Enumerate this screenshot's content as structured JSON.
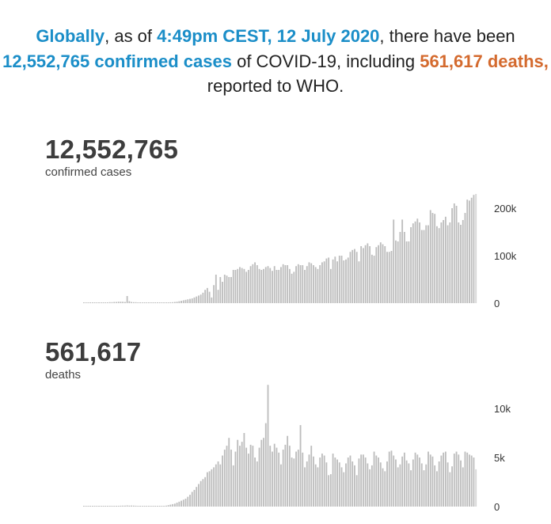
{
  "headline": {
    "p1": "Globally",
    "p2": ", as of ",
    "p3": "4:49pm CEST, 12 July 2020",
    "p4": ", there have been ",
    "p5": "12,552,765 confirmed cases",
    "p6": " of COVID-19, including ",
    "p7": "561,617 deaths,",
    "p8": " reported to WHO."
  },
  "colors": {
    "accent_blue": "#1b8ec8",
    "accent_orange": "#d46a2e",
    "bar": "#bdbdbd",
    "text": "#3d3d3d"
  },
  "cases": {
    "total": "12,552,765",
    "label": "confirmed cases"
  },
  "deaths": {
    "total": "561,617",
    "label": "deaths"
  },
  "chart_data": [
    {
      "type": "bar",
      "title": "",
      "ylim": [
        0,
        230000
      ],
      "yticks": [
        0,
        100000,
        200000
      ],
      "ytick_labels": [
        "0",
        "100k",
        "200k"
      ],
      "grid": false,
      "values": [
        0,
        0,
        0,
        0,
        100,
        200,
        300,
        400,
        600,
        800,
        1000,
        1500,
        2000,
        2000,
        2500,
        2500,
        3000,
        3000,
        3000,
        2500,
        15000,
        4000,
        2500,
        2000,
        2000,
        1500,
        1000,
        1000,
        800,
        600,
        500,
        500,
        600,
        700,
        800,
        900,
        1000,
        1200,
        1300,
        1500,
        1800,
        2000,
        2500,
        3000,
        4000,
        5000,
        6000,
        7000,
        8000,
        9000,
        10000,
        12000,
        14000,
        16000,
        18000,
        22000,
        28000,
        32000,
        24000,
        12000,
        38000,
        60000,
        28000,
        55000,
        45000,
        60000,
        58000,
        55000,
        55000,
        70000,
        70000,
        72000,
        76000,
        74000,
        72000,
        66000,
        70000,
        78000,
        82000,
        86000,
        80000,
        72000,
        70000,
        72000,
        76000,
        78000,
        74000,
        68000,
        78000,
        70000,
        70000,
        76000,
        82000,
        80000,
        80000,
        72000,
        62000,
        66000,
        78000,
        82000,
        80000,
        80000,
        70000,
        78000,
        86000,
        84000,
        80000,
        76000,
        72000,
        80000,
        86000,
        88000,
        94000,
        96000,
        72000,
        92000,
        98000,
        88000,
        100000,
        100000,
        90000,
        92000,
        96000,
        108000,
        112000,
        114000,
        108000,
        88000,
        120000,
        116000,
        122000,
        126000,
        120000,
        102000,
        100000,
        118000,
        122000,
        128000,
        124000,
        120000,
        108000,
        108000,
        110000,
        176000,
        132000,
        130000,
        150000,
        176000,
        150000,
        130000,
        130000,
        160000,
        168000,
        172000,
        178000,
        170000,
        154000,
        154000,
        164000,
        164000,
        196000,
        190000,
        188000,
        162000,
        158000,
        170000,
        175000,
        182000,
        164000,
        170000,
        200000,
        210000,
        205000,
        170000,
        165000,
        175000,
        190000,
        218000,
        216000,
        222000,
        228000,
        230000
      ]
    },
    {
      "type": "bar",
      "title": "",
      "ylim": [
        0,
        12500
      ],
      "yticks": [
        0,
        5000,
        10000
      ],
      "ytick_labels": [
        "0",
        "5k",
        "10k"
      ],
      "grid": false,
      "values": [
        0,
        0,
        0,
        0,
        0,
        0,
        0,
        5,
        10,
        20,
        30,
        40,
        50,
        60,
        60,
        70,
        80,
        90,
        100,
        100,
        120,
        100,
        110,
        100,
        90,
        80,
        70,
        60,
        50,
        50,
        40,
        40,
        50,
        50,
        60,
        60,
        70,
        80,
        100,
        150,
        200,
        250,
        300,
        400,
        500,
        600,
        700,
        800,
        1000,
        1200,
        1500,
        1700,
        2000,
        2300,
        2600,
        2800,
        3000,
        3500,
        3600,
        3800,
        4000,
        4300,
        4600,
        4300,
        5200,
        5800,
        6200,
        7000,
        5800,
        4200,
        5600,
        6800,
        6200,
        6600,
        7500,
        6000,
        5400,
        6300,
        6200,
        5000,
        4600,
        6000,
        6800,
        7000,
        8500,
        12400,
        6200,
        5600,
        6400,
        6000,
        5500,
        4300,
        5800,
        6300,
        7200,
        6200,
        5000,
        4900,
        5600,
        5800,
        8300,
        5500,
        4000,
        4600,
        5300,
        6200,
        5100,
        4300,
        4000,
        5000,
        5400,
        5200,
        4500,
        3200,
        3300,
        5400,
        5000,
        4800,
        4500,
        4000,
        3500,
        4400,
        5000,
        5200,
        4600,
        4200,
        3200,
        4900,
        5300,
        5300,
        5000,
        4400,
        3800,
        4200,
        5600,
        5200,
        5000,
        4500,
        3900,
        3600,
        4600,
        5600,
        5700,
        5200,
        4800,
        4000,
        4300,
        5100,
        5500,
        4700,
        4400,
        3700,
        4800,
        5500,
        5300,
        5000,
        4400,
        3700,
        4300,
        5600,
        5300,
        5100,
        4200,
        3600,
        4600,
        5200,
        5500,
        5600,
        4500,
        3500,
        4100,
        5400,
        5600,
        5300,
        4700,
        4000,
        5600,
        5500,
        5300,
        5200,
        5000,
        3800
      ]
    }
  ]
}
